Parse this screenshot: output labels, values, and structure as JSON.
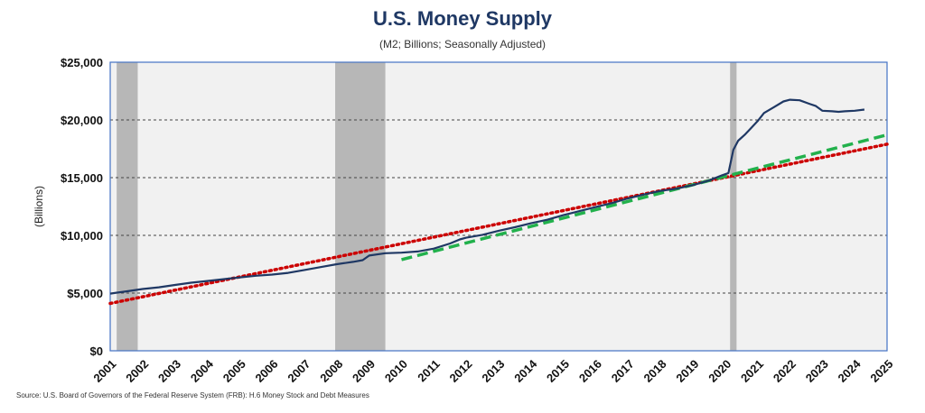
{
  "title": "U.S. Money Supply",
  "subtitle": "(M2; Billions; Seasonally Adjusted)",
  "source": "Source: U.S. Board of Governors of the Federal Reserve System (FRB): H.6 Money Stock and Debt Measures",
  "chart_data": {
    "type": "line",
    "title": "U.S. Money Supply",
    "subtitle": "(M2; Billions; Seasonally Adjusted)",
    "xlabel": "",
    "ylabel": "(Billions)",
    "xlim": [
      2001,
      2025
    ],
    "ylim": [
      0,
      25000
    ],
    "grid": "horizontal dashed",
    "y_ticks": [
      {
        "value": 0,
        "label": "$0"
      },
      {
        "value": 5000,
        "label": "$5,000"
      },
      {
        "value": 10000,
        "label": "$10,000"
      },
      {
        "value": 15000,
        "label": "$15,000"
      },
      {
        "value": 20000,
        "label": "$20,000"
      },
      {
        "value": 25000,
        "label": "$25,000"
      }
    ],
    "x_ticks": [
      "2001",
      "2002",
      "2003",
      "2004",
      "2005",
      "2006",
      "2007",
      "2008",
      "2009",
      "2010",
      "2011",
      "2012",
      "2013",
      "2014",
      "2015",
      "2016",
      "2017",
      "2018",
      "2019",
      "2020",
      "2021",
      "2022",
      "2023",
      "2024",
      "2025"
    ],
    "recessions": [
      {
        "start": 2001.2,
        "end": 2001.85
      },
      {
        "start": 2007.95,
        "end": 2009.5
      },
      {
        "start": 2020.15,
        "end": 2020.35
      }
    ],
    "colors": {
      "series": "#1f3864",
      "trend_all": "#cc0000",
      "trend_post": "#22b14c",
      "recession": "#b7b7b7",
      "plot_bg": "#f1f1f1",
      "border": "#4472c4"
    },
    "series": [
      {
        "type": "line",
        "x": [
          2001.0,
          2001.5,
          2002.0,
          2002.5,
          2003.0,
          2003.5,
          2004.0,
          2004.5,
          2005.0,
          2005.5,
          2006.0,
          2006.5,
          2007.0,
          2007.5,
          2008.0,
          2008.5,
          2008.8,
          2009.0,
          2009.5,
          2010.0,
          2010.5,
          2011.0,
          2011.5,
          2011.8,
          2012.0,
          2012.5,
          2013.0,
          2013.5,
          2014.0,
          2014.5,
          2015.0,
          2015.5,
          2016.0,
          2016.5,
          2017.0,
          2017.5,
          2018.0,
          2018.5,
          2019.0,
          2019.5,
          2019.9,
          2020.1,
          2020.25,
          2020.4,
          2020.6,
          2020.8,
          2021.0,
          2021.2,
          2021.5,
          2021.8,
          2022.0,
          2022.3,
          2022.6,
          2022.8,
          2023.0,
          2023.3,
          2023.5,
          2023.7,
          2024.0,
          2024.3
        ],
        "values": [
          4950,
          5150,
          5350,
          5500,
          5700,
          5900,
          6050,
          6200,
          6350,
          6500,
          6600,
          6750,
          7000,
          7250,
          7500,
          7700,
          7850,
          8250,
          8450,
          8500,
          8600,
          8850,
          9300,
          9650,
          9800,
          10050,
          10400,
          10700,
          11050,
          11350,
          11750,
          12100,
          12450,
          12800,
          13200,
          13550,
          13850,
          14050,
          14350,
          14750,
          15200,
          15400,
          17400,
          18200,
          18700,
          19300,
          19900,
          20600,
          21100,
          21600,
          21750,
          21700,
          21400,
          21200,
          20800,
          20750,
          20700,
          20750,
          20800,
          20900
        ]
      },
      {
        "type": "trend",
        "x": [
          2001.0,
          2025.0
        ],
        "values": [
          4100,
          17900
        ]
      },
      {
        "type": "trend",
        "x": [
          2010.0,
          2025.0
        ],
        "values": [
          7900,
          18700
        ]
      }
    ]
  }
}
